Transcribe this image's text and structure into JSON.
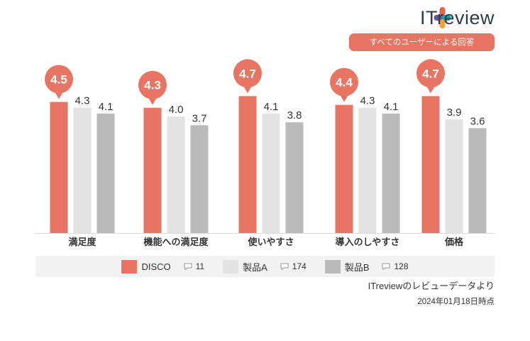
{
  "brand": {
    "logo_text": "ITreview",
    "logo_colors": [
      "#e8614f",
      "#1aa5a5",
      "#6c4fa0",
      "#f0a23a"
    ]
  },
  "filter_label": "すべてのユーザーによる回答",
  "legend": [
    {
      "name": "DISCO",
      "count": "11",
      "color": "#e87563"
    },
    {
      "name": "製品A",
      "count": "174",
      "color": "#e3e3e3"
    },
    {
      "name": "製品B",
      "count": "128",
      "color": "#bababa"
    }
  ],
  "source_note": "ITreviewのレビューデータより",
  "date_note": "2024年01月18日時点",
  "chart_data": {
    "type": "bar",
    "categories": [
      "満足度",
      "機能への満足度",
      "使いやすさ",
      "導入のしやすさ",
      "価格"
    ],
    "series": [
      {
        "name": "DISCO",
        "values": [
          4.5,
          4.3,
          4.7,
          4.4,
          4.7
        ],
        "color": "#e87563"
      },
      {
        "name": "製品A",
        "values": [
          4.3,
          4.0,
          4.1,
          4.3,
          3.9
        ],
        "color": "#e3e3e3"
      },
      {
        "name": "製品B",
        "values": [
          4.1,
          3.7,
          3.8,
          4.1,
          3.6
        ],
        "color": "#bababa"
      }
    ],
    "ylim": [
      0,
      5
    ],
    "grid": false,
    "legend_position": "bottom",
    "highlight_series": "DISCO"
  }
}
